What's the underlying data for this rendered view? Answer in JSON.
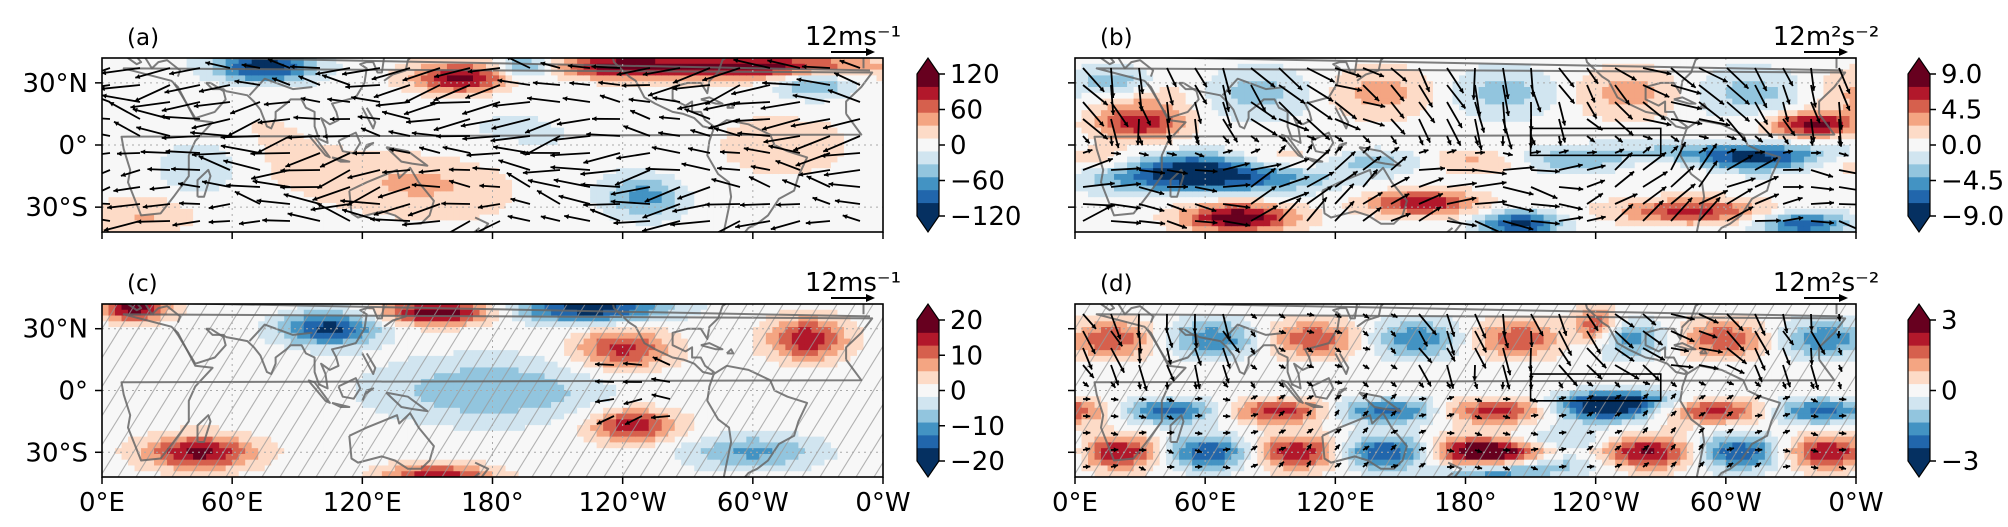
{
  "panels": [
    {
      "id": "a",
      "label": "(a)",
      "vector_scale_label": "12ms⁻¹",
      "colorbar": {
        "ticks": [
          "120",
          "60",
          "0",
          "−60",
          "−120"
        ],
        "min": -120,
        "max": 120
      },
      "y_ticks": [
        "30°N",
        "0°",
        "30°S"
      ],
      "x_ticks": [],
      "hatched": false,
      "box": false
    },
    {
      "id": "b",
      "label": "(b)",
      "vector_scale_label": "12m²s⁻²",
      "colorbar": {
        "ticks": [
          "9.0",
          "4.5",
          "0.0",
          "−4.5",
          "−9.0"
        ],
        "min": -9,
        "max": 9
      },
      "y_ticks": [],
      "x_ticks": [],
      "hatched": false,
      "box": true
    },
    {
      "id": "c",
      "label": "(c)",
      "vector_scale_label": "12ms⁻¹",
      "colorbar": {
        "ticks": [
          "20",
          "10",
          "0",
          "−10",
          "−20"
        ],
        "min": -20,
        "max": 20
      },
      "y_ticks": [
        "30°N",
        "0°",
        "30°S"
      ],
      "x_ticks": [
        "0°E",
        "60°E",
        "120°E",
        "180°",
        "120°W",
        "60°W",
        "0°W"
      ],
      "hatched": true,
      "box": false
    },
    {
      "id": "d",
      "label": "(d)",
      "vector_scale_label": "12m²s⁻²",
      "colorbar": {
        "ticks": [
          "3",
          "0",
          "−3"
        ],
        "min": -3,
        "max": 3
      },
      "y_ticks": [],
      "x_ticks": [
        "0°E",
        "60°E",
        "120°E",
        "180°",
        "120°W",
        "60°W",
        "0°W"
      ],
      "hatched": true,
      "box": true
    }
  ],
  "colors": {
    "diverging_scale": [
      "#053061",
      "#2166ac",
      "#4393c3",
      "#92c5de",
      "#d1e5f0",
      "#f7f7f7",
      "#fddbc7",
      "#f4a582",
      "#d6604d",
      "#b2182b",
      "#67001f"
    ],
    "coastline": "#666666",
    "arrows": "#000000"
  }
}
